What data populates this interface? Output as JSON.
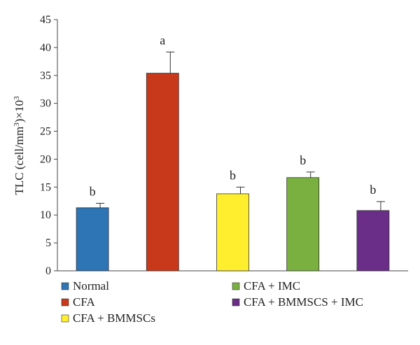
{
  "chart_data": {
    "type": "bar",
    "title": "",
    "xlabel": "",
    "ylabel": {
      "prefix": "TLC (cell/mm",
      "sup1": "3",
      "middle": ")×10",
      "sup2": "3"
    },
    "ylim": [
      0,
      45
    ],
    "yticks": [
      0,
      5,
      10,
      15,
      20,
      25,
      30,
      35,
      40,
      45
    ],
    "grid": false,
    "legend_position": "bottom",
    "bars": [
      {
        "name": "Normal",
        "value": 11.3,
        "error": 0.8,
        "label": "b",
        "color": "#2e75b6"
      },
      {
        "name": "CFA",
        "value": 35.4,
        "error": 3.8,
        "label": "a",
        "color": "#c8381b"
      },
      {
        "name": "CFA + BMMSCs",
        "value": 13.8,
        "error": 1.2,
        "label": "b",
        "color": "#ffee2e"
      },
      {
        "name": "CFA + IMC",
        "value": 16.7,
        "error": 1.0,
        "label": "b",
        "color": "#7ab03f"
      },
      {
        "name": "CFA + BMMSCS + IMC",
        "value": 10.8,
        "error": 1.6,
        "label": "b",
        "color": "#6a2d88"
      }
    ]
  }
}
